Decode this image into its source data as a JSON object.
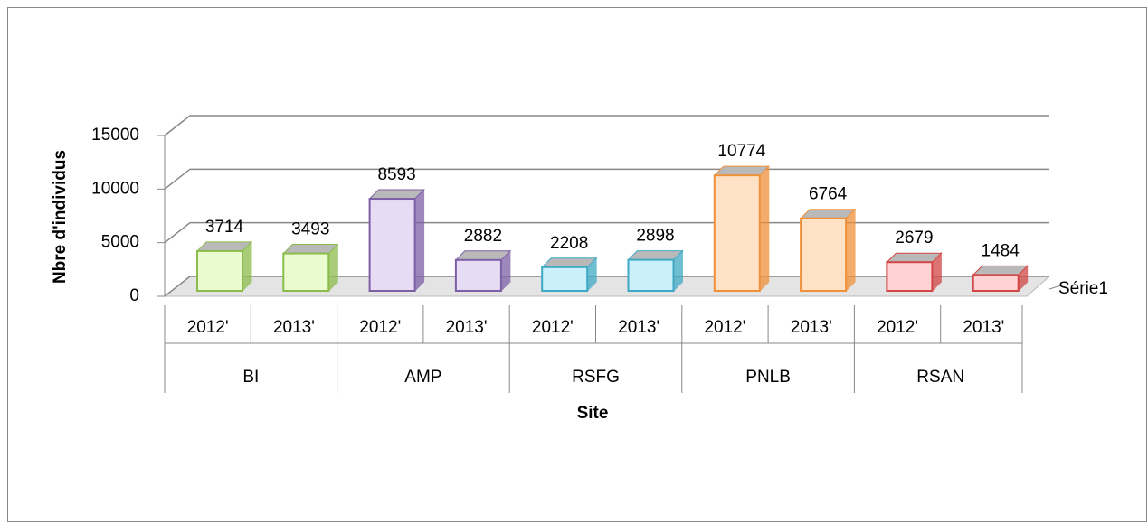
{
  "chart_data": {
    "type": "bar3d",
    "y_label": "Nbre d'individus",
    "x_label": "Site",
    "categories": [
      "2012'",
      "2013'",
      "2012'",
      "2013'",
      "2012'",
      "2013'",
      "2012'",
      "2013'",
      "2012'",
      "2013'"
    ],
    "groups": [
      {
        "label": "BI",
        "fill": "#eafbd0",
        "stroke": "#8cbc4c"
      },
      {
        "label": "AMP",
        "fill": "#e6dcf3",
        "stroke": "#7d5fa6"
      },
      {
        "label": "RSFG",
        "fill": "#c9f0fb",
        "stroke": "#3fa9c4"
      },
      {
        "label": "PNLB",
        "fill": "#ffe2c6",
        "stroke": "#f0913a"
      },
      {
        "label": "RSAN",
        "fill": "#ffd3d3",
        "stroke": "#d24646"
      }
    ],
    "series": [
      {
        "name": "Série1",
        "values": [
          3714,
          3493,
          8593,
          2882,
          2208,
          2898,
          10774,
          6764,
          2679,
          1484
        ]
      }
    ],
    "ylim": [
      0,
      15000
    ],
    "yticks": [
      0,
      5000,
      10000,
      15000
    ],
    "grid": true
  }
}
